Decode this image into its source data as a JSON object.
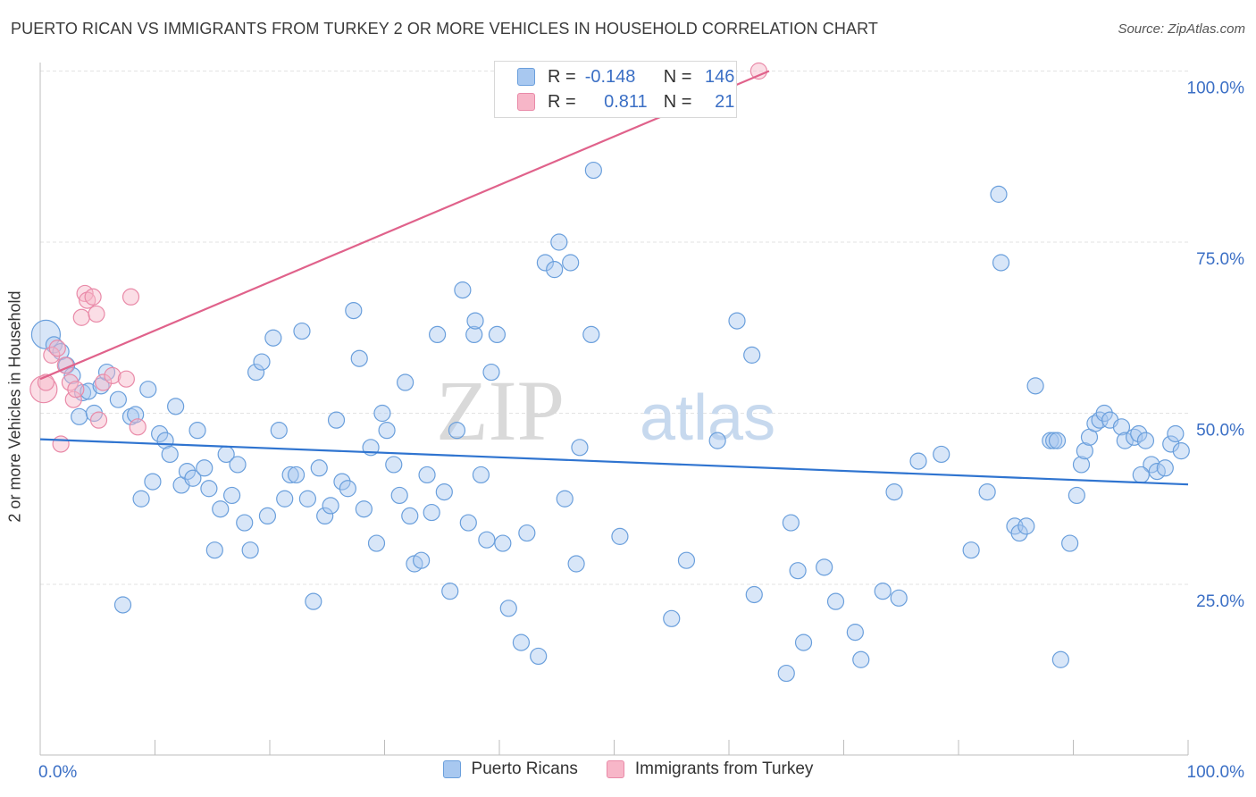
{
  "header": {
    "title": "PUERTO RICAN VS IMMIGRANTS FROM TURKEY 2 OR MORE VEHICLES IN HOUSEHOLD CORRELATION CHART",
    "source": "Source: ZipAtlas.com"
  },
  "watermark": {
    "zip": "ZIP",
    "atlas": "atlas"
  },
  "legend": {
    "rows": [
      {
        "r_label": "R =",
        "r_value": "-0.148",
        "n_label": "N =",
        "n_value": "146",
        "color": "#a8c8f0",
        "stroke": "#6a9fdc"
      },
      {
        "r_label": "R =",
        "r_value": "0.811",
        "n_label": "N =",
        "n_value": "21",
        "color": "#f7b6c8",
        "stroke": "#e98aa8"
      }
    ]
  },
  "bottom_legend": {
    "items": [
      {
        "label": "Puerto Ricans",
        "color": "#a8c8f0",
        "stroke": "#6a9fdc"
      },
      {
        "label": "Immigrants from Turkey",
        "color": "#f7b6c8",
        "stroke": "#e98aa8"
      }
    ]
  },
  "chart_data": {
    "type": "scatter",
    "title": "PUERTO RICAN VS IMMIGRANTS FROM TURKEY 2 OR MORE VEHICLES IN HOUSEHOLD CORRELATION CHART",
    "ylabel": "2 or more Vehicles in Household",
    "x_tick_labels": [
      "0.0%",
      "100.0%"
    ],
    "y_tick_labels": [
      "25.0%",
      "50.0%",
      "75.0%",
      "100.0%"
    ],
    "y_ticks": [
      25,
      50,
      75,
      100
    ],
    "xlim": [
      0,
      100
    ],
    "ylim": [
      0,
      101
    ],
    "grid": true,
    "legend_position": "top-center",
    "series": [
      {
        "name": "Puerto Ricans",
        "color": "#6a9fdc",
        "fill": "#a8c8f0",
        "trend": {
          "x": [
            0,
            100
          ],
          "y": [
            46.2,
            39.6
          ]
        },
        "points": [
          [
            0.5,
            61.5
          ],
          [
            1.2,
            60.0
          ],
          [
            1.8,
            59.0
          ],
          [
            2.3,
            57.0
          ],
          [
            2.8,
            55.5
          ],
          [
            3.4,
            49.5
          ],
          [
            3.7,
            53.0
          ],
          [
            4.2,
            53.2
          ],
          [
            4.7,
            50.0
          ],
          [
            5.3,
            54.0
          ],
          [
            5.8,
            56.0
          ],
          [
            6.8,
            52.0
          ],
          [
            7.2,
            22.0
          ],
          [
            7.9,
            49.5
          ],
          [
            8.3,
            49.8
          ],
          [
            8.8,
            37.5
          ],
          [
            9.4,
            53.5
          ],
          [
            9.8,
            40.0
          ],
          [
            10.4,
            47.0
          ],
          [
            10.9,
            46.0
          ],
          [
            11.3,
            44.0
          ],
          [
            11.8,
            51.0
          ],
          [
            12.3,
            39.5
          ],
          [
            12.8,
            41.5
          ],
          [
            13.3,
            40.5
          ],
          [
            13.7,
            47.5
          ],
          [
            14.3,
            42.0
          ],
          [
            14.7,
            39.0
          ],
          [
            15.2,
            30.0
          ],
          [
            15.7,
            36.0
          ],
          [
            16.2,
            44.0
          ],
          [
            16.7,
            38.0
          ],
          [
            17.2,
            42.5
          ],
          [
            17.8,
            34.0
          ],
          [
            18.3,
            30.0
          ],
          [
            18.8,
            56.0
          ],
          [
            19.3,
            57.5
          ],
          [
            19.8,
            35.0
          ],
          [
            20.3,
            61.0
          ],
          [
            20.8,
            47.5
          ],
          [
            21.3,
            37.5
          ],
          [
            21.8,
            41.0
          ],
          [
            22.3,
            41.0
          ],
          [
            22.8,
            62.0
          ],
          [
            23.3,
            37.5
          ],
          [
            23.8,
            22.5
          ],
          [
            24.3,
            42.0
          ],
          [
            24.8,
            35.0
          ],
          [
            25.3,
            36.5
          ],
          [
            25.8,
            49.0
          ],
          [
            26.3,
            40.0
          ],
          [
            26.8,
            39.0
          ],
          [
            27.3,
            65.0
          ],
          [
            27.8,
            58.0
          ],
          [
            28.2,
            36.0
          ],
          [
            28.8,
            45.0
          ],
          [
            29.3,
            31.0
          ],
          [
            29.8,
            50.0
          ],
          [
            30.2,
            47.5
          ],
          [
            30.8,
            42.5
          ],
          [
            31.3,
            38.0
          ],
          [
            31.8,
            54.5
          ],
          [
            32.2,
            35.0
          ],
          [
            32.6,
            28.0
          ],
          [
            33.2,
            28.5
          ],
          [
            33.7,
            41.0
          ],
          [
            34.1,
            35.5
          ],
          [
            34.6,
            61.5
          ],
          [
            35.2,
            38.5
          ],
          [
            35.7,
            24.0
          ],
          [
            36.3,
            47.5
          ],
          [
            36.8,
            68.0
          ],
          [
            37.3,
            34.0
          ],
          [
            37.8,
            61.5
          ],
          [
            38.4,
            41.0
          ],
          [
            38.9,
            31.5
          ],
          [
            39.3,
            56.0
          ],
          [
            39.8,
            61.5
          ],
          [
            40.3,
            31.0
          ],
          [
            40.8,
            21.5
          ],
          [
            41.9,
            16.5
          ],
          [
            42.4,
            32.5
          ],
          [
            43.4,
            14.5
          ],
          [
            44.0,
            72.0
          ],
          [
            44.8,
            71.0
          ],
          [
            45.2,
            75.0
          ],
          [
            45.7,
            37.5
          ],
          [
            46.2,
            72.0
          ],
          [
            46.7,
            28.0
          ],
          [
            47.0,
            45.0
          ],
          [
            48.0,
            61.5
          ],
          [
            48.2,
            85.5
          ],
          [
            50.5,
            32.0
          ],
          [
            55.0,
            20.0
          ],
          [
            56.3,
            28.5
          ],
          [
            59.0,
            46.0
          ],
          [
            60.7,
            63.5
          ],
          [
            62.0,
            58.5
          ],
          [
            65.0,
            12.0
          ],
          [
            65.4,
            34.0
          ],
          [
            66.0,
            27.0
          ],
          [
            66.5,
            16.5
          ],
          [
            68.3,
            27.5
          ],
          [
            69.3,
            22.5
          ],
          [
            71.0,
            18.0
          ],
          [
            71.5,
            14.0
          ],
          [
            73.4,
            24.0
          ],
          [
            74.8,
            23.0
          ],
          [
            76.5,
            43.0
          ],
          [
            78.5,
            44.0
          ],
          [
            81.1,
            30.0
          ],
          [
            82.5,
            38.5
          ],
          [
            83.5,
            82.0
          ],
          [
            83.7,
            72.0
          ],
          [
            84.9,
            33.5
          ],
          [
            85.3,
            32.5
          ],
          [
            85.9,
            33.5
          ],
          [
            86.7,
            54.0
          ],
          [
            88.0,
            46.0
          ],
          [
            88.3,
            46.0
          ],
          [
            88.9,
            14.0
          ],
          [
            89.7,
            31.0
          ],
          [
            90.3,
            38.0
          ],
          [
            90.7,
            42.5
          ],
          [
            91.0,
            44.5
          ],
          [
            91.4,
            46.5
          ],
          [
            91.9,
            48.5
          ],
          [
            92.3,
            49.0
          ],
          [
            92.7,
            50.0
          ],
          [
            93.2,
            49.0
          ],
          [
            94.2,
            48.0
          ],
          [
            94.5,
            46.0
          ],
          [
            95.3,
            46.5
          ],
          [
            95.7,
            47.0
          ],
          [
            96.3,
            46.0
          ],
          [
            96.8,
            42.5
          ],
          [
            97.3,
            41.5
          ],
          [
            98.0,
            42.0
          ],
          [
            98.5,
            45.5
          ],
          [
            98.9,
            47.0
          ],
          [
            99.4,
            44.5
          ],
          [
            88.6,
            46.0
          ],
          [
            74.4,
            38.5
          ],
          [
            37.9,
            63.5
          ],
          [
            62.2,
            23.5
          ],
          [
            95.9,
            41.0
          ]
        ]
      },
      {
        "name": "Immigrants from Turkey",
        "color": "#e98aa8",
        "fill": "#f7b6c8",
        "trend": {
          "x": [
            0,
            63.5
          ],
          "y": [
            55.0,
            100.0
          ]
        },
        "points": [
          [
            0.3,
            53.5
          ],
          [
            0.5,
            54.5
          ],
          [
            1.0,
            58.5
          ],
          [
            1.5,
            59.5
          ],
          [
            1.8,
            45.5
          ],
          [
            2.2,
            57.0
          ],
          [
            2.6,
            54.5
          ],
          [
            2.9,
            52.0
          ],
          [
            3.1,
            53.5
          ],
          [
            3.6,
            64.0
          ],
          [
            3.9,
            67.5
          ],
          [
            4.1,
            66.5
          ],
          [
            4.6,
            67.0
          ],
          [
            4.9,
            64.5
          ],
          [
            5.1,
            49.0
          ],
          [
            5.5,
            54.5
          ],
          [
            6.3,
            55.5
          ],
          [
            7.5,
            55.0
          ],
          [
            7.9,
            67.0
          ],
          [
            8.5,
            48.0
          ],
          [
            62.6,
            100.0
          ]
        ]
      }
    ]
  }
}
